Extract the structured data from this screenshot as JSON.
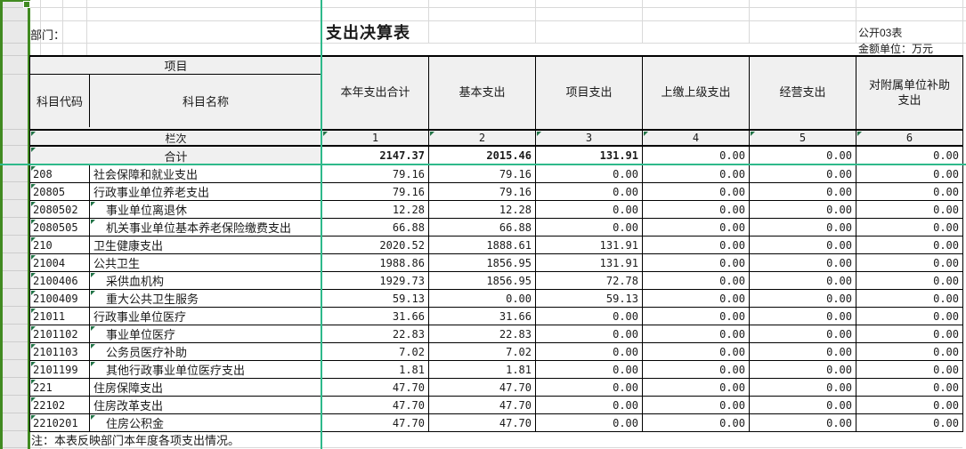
{
  "sheet": {
    "department_label": "部门：",
    "title": "支出决算表",
    "doc_code": "公开03表",
    "unit_note": "金额单位：万元",
    "note": "注：本表反映部门本年度各项支出情况。"
  },
  "table": {
    "project_header": "项目",
    "col_headers": [
      "科目代码",
      "科目名称",
      "本年支出合计",
      "基本支出",
      "项目支出",
      "上缴上级支出",
      "经营支出",
      "对附属单位补助支出"
    ],
    "lanci_label": "栏次",
    "column_numbers": [
      "1",
      "2",
      "3",
      "4",
      "5",
      "6"
    ],
    "total_row": {
      "label": "合计",
      "values": [
        "2147.37",
        "2015.46",
        "131.91",
        "0.00",
        "0.00",
        "0.00"
      ]
    },
    "rows": [
      {
        "code": "208",
        "name": "社会保障和就业支出",
        "indent": false,
        "values": [
          "79.16",
          "79.16",
          "0.00",
          "0.00",
          "0.00",
          "0.00"
        ]
      },
      {
        "code": "20805",
        "name": "行政事业单位养老支出",
        "indent": false,
        "values": [
          "79.16",
          "79.16",
          "0.00",
          "0.00",
          "0.00",
          "0.00"
        ]
      },
      {
        "code": "2080502",
        "name": "事业单位离退休",
        "indent": true,
        "values": [
          "12.28",
          "12.28",
          "0.00",
          "0.00",
          "0.00",
          "0.00"
        ]
      },
      {
        "code": "2080505",
        "name": "机关事业单位基本养老保险缴费支出",
        "indent": true,
        "values": [
          "66.88",
          "66.88",
          "0.00",
          "0.00",
          "0.00",
          "0.00"
        ]
      },
      {
        "code": "210",
        "name": "卫生健康支出",
        "indent": false,
        "values": [
          "2020.52",
          "1888.61",
          "131.91",
          "0.00",
          "0.00",
          "0.00"
        ]
      },
      {
        "code": "21004",
        "name": "公共卫生",
        "indent": false,
        "values": [
          "1988.86",
          "1856.95",
          "131.91",
          "0.00",
          "0.00",
          "0.00"
        ]
      },
      {
        "code": "2100406",
        "name": "采供血机构",
        "indent": true,
        "values": [
          "1929.73",
          "1856.95",
          "72.78",
          "0.00",
          "0.00",
          "0.00"
        ]
      },
      {
        "code": "2100409",
        "name": "重大公共卫生服务",
        "indent": true,
        "values": [
          "59.13",
          "0.00",
          "59.13",
          "0.00",
          "0.00",
          "0.00"
        ]
      },
      {
        "code": "21011",
        "name": "行政事业单位医疗",
        "indent": false,
        "values": [
          "31.66",
          "31.66",
          "0.00",
          "0.00",
          "0.00",
          "0.00"
        ]
      },
      {
        "code": "2101102",
        "name": "事业单位医疗",
        "indent": true,
        "values": [
          "22.83",
          "22.83",
          "0.00",
          "0.00",
          "0.00",
          "0.00"
        ]
      },
      {
        "code": "2101103",
        "name": "公务员医疗补助",
        "indent": true,
        "values": [
          "7.02",
          "7.02",
          "0.00",
          "0.00",
          "0.00",
          "0.00"
        ]
      },
      {
        "code": "2101199",
        "name": "其他行政事业单位医疗支出",
        "indent": true,
        "values": [
          "1.81",
          "1.81",
          "0.00",
          "0.00",
          "0.00",
          "0.00"
        ]
      },
      {
        "code": "221",
        "name": "住房保障支出",
        "indent": false,
        "values": [
          "47.70",
          "47.70",
          "0.00",
          "0.00",
          "0.00",
          "0.00"
        ]
      },
      {
        "code": "22102",
        "name": "住房改革支出",
        "indent": false,
        "values": [
          "47.70",
          "47.70",
          "0.00",
          "0.00",
          "0.00",
          "0.00"
        ]
      },
      {
        "code": "2210201",
        "name": "住房公积金",
        "indent": true,
        "values": [
          "47.70",
          "47.70",
          "0.00",
          "0.00",
          "0.00",
          "0.00"
        ]
      }
    ]
  },
  "colors": {
    "selection_green": "#418a21",
    "freeze_line_teal": "#2eb98a",
    "error_indicator_green": "#217346",
    "header_fill": "#f0f0f0",
    "selected_column_fill": "#e9e9e9",
    "grid_line_grey": "#d9d9d9",
    "cell_border": "#000000"
  }
}
